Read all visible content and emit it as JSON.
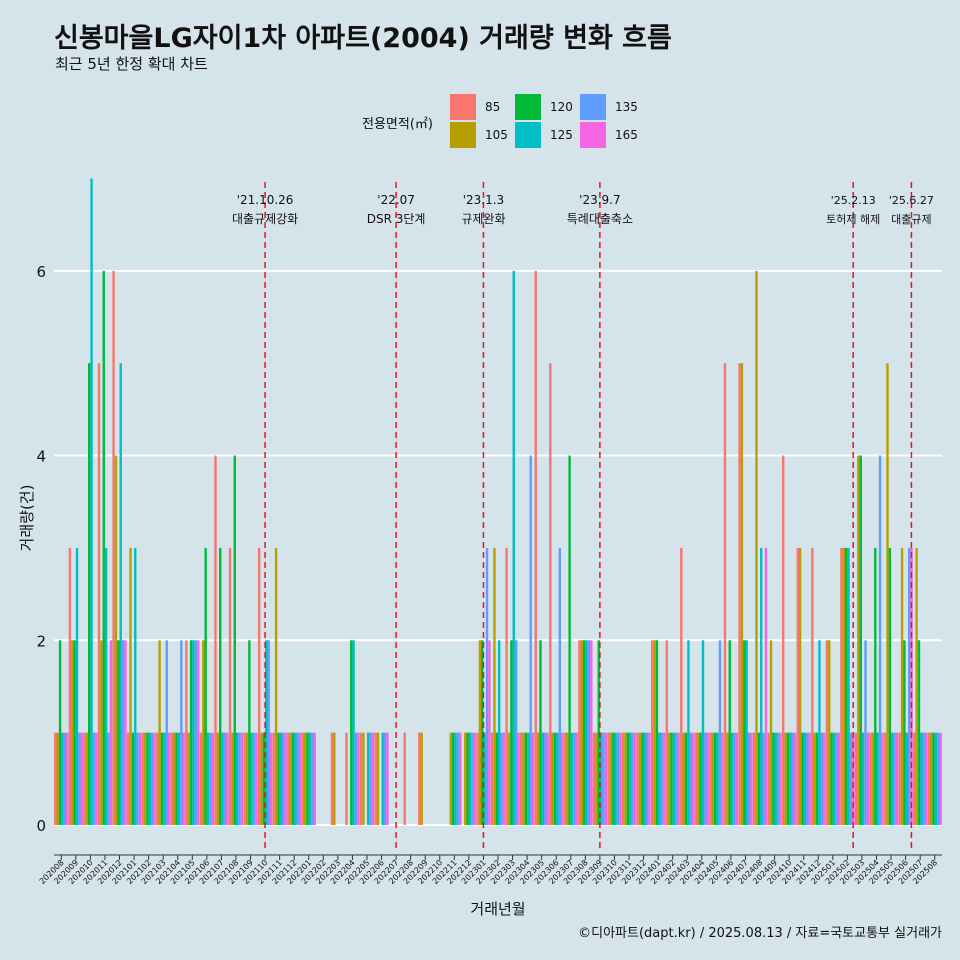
{
  "title": "신봉마을LG자이1차 아파트(2004) 거래량 변화 흐름",
  "subtitle": "최근 5년 한정 확대 차트",
  "caption": "©디아파트(dapt.kr) / 2025.08.13 / 자료=국토교통부 실거래가",
  "legend": {
    "title": "전용면적(㎡)",
    "items": [
      {
        "label": "85",
        "color": "#f8766d"
      },
      {
        "label": "105",
        "color": "#b79f00"
      },
      {
        "label": "120",
        "color": "#00ba38"
      },
      {
        "label": "125",
        "color": "#00bfc4"
      },
      {
        "label": "135",
        "color": "#619cff"
      },
      {
        "label": "165",
        "color": "#f564e3"
      }
    ]
  },
  "chart_data": {
    "type": "bar",
    "title": "신봉마을LG자이1차 아파트(2004) 거래량 변화 흐름",
    "xlabel": "거래년월",
    "ylabel": "거래량(건)",
    "ylim": [
      0,
      7.2
    ],
    "yticks": [
      0,
      2,
      4,
      6
    ],
    "grid": true,
    "legend_position": "top",
    "categories": [
      "202008",
      "202009",
      "202010",
      "202011",
      "202012",
      "202101",
      "202102",
      "202103",
      "202104",
      "202105",
      "202106",
      "202107",
      "202108",
      "202109",
      "202110",
      "202111",
      "202112",
      "202201",
      "202202",
      "202203",
      "202204",
      "202205",
      "202206",
      "202207",
      "202208",
      "202209",
      "202210",
      "202211",
      "202212",
      "202301",
      "202302",
      "202303",
      "202304",
      "202305",
      "202306",
      "202307",
      "202308",
      "202309",
      "202310",
      "202311",
      "202312",
      "202401",
      "202402",
      "202403",
      "202404",
      "202405",
      "202406",
      "202407",
      "202408",
      "202409",
      "202410",
      "202411",
      "202412",
      "202501",
      "202502",
      "202503",
      "202504",
      "202505",
      "202506",
      "202507",
      "202508"
    ],
    "series": [
      {
        "name": "85",
        "values": [
          1,
          3,
          1,
          5,
          6,
          1,
          1,
          1,
          1,
          2,
          1,
          4,
          3,
          1,
          3,
          1,
          1,
          1,
          0,
          1,
          1,
          1,
          1,
          0,
          1,
          1,
          0,
          0,
          0,
          1,
          1,
          3,
          1,
          6,
          5,
          1,
          2,
          1,
          1,
          1,
          1,
          2,
          2,
          3,
          1,
          1,
          5,
          5,
          1,
          1,
          4,
          3,
          3,
          2,
          3,
          1,
          1,
          1,
          1,
          1,
          1
        ]
      },
      {
        "name": "105",
        "values": [
          1,
          2,
          1,
          2,
          4,
          3,
          1,
          2,
          1,
          1,
          2,
          1,
          1,
          1,
          1,
          3,
          1,
          1,
          0,
          1,
          0,
          1,
          1,
          0,
          0,
          1,
          0,
          1,
          1,
          2,
          3,
          1,
          1,
          1,
          1,
          1,
          2,
          1,
          1,
          1,
          1,
          2,
          1,
          1,
          1,
          1,
          1,
          5,
          6,
          2,
          1,
          3,
          1,
          2,
          3,
          4,
          1,
          5,
          3,
          3,
          1
        ]
      },
      {
        "name": "120",
        "values": [
          2,
          2,
          5,
          6,
          2,
          1,
          1,
          1,
          1,
          2,
          3,
          3,
          4,
          2,
          1,
          1,
          1,
          1,
          0,
          0,
          2,
          0,
          0,
          0,
          0,
          0,
          0,
          1,
          1,
          2,
          1,
          2,
          1,
          2,
          1,
          4,
          2,
          2,
          1,
          1,
          1,
          2,
          1,
          1,
          1,
          1,
          2,
          2,
          1,
          1,
          1,
          1,
          1,
          1,
          3,
          4,
          3,
          3,
          2,
          2,
          1
        ]
      },
      {
        "name": "125",
        "values": [
          1,
          3,
          7,
          3,
          5,
          3,
          1,
          1,
          1,
          2,
          1,
          1,
          1,
          1,
          2,
          1,
          1,
          1,
          0,
          0,
          2,
          1,
          1,
          0,
          0,
          0,
          0,
          1,
          1,
          1,
          2,
          6,
          1,
          1,
          1,
          1,
          2,
          1,
          1,
          1,
          1,
          1,
          1,
          2,
          2,
          1,
          1,
          2,
          3,
          1,
          1,
          1,
          2,
          1,
          3,
          1,
          1,
          1,
          1,
          1,
          1
        ]
      },
      {
        "name": "135",
        "values": [
          1,
          1,
          1,
          1,
          2,
          1,
          1,
          2,
          2,
          2,
          1,
          1,
          1,
          1,
          2,
          1,
          1,
          1,
          0,
          0,
          1,
          1,
          1,
          0,
          0,
          0,
          0,
          1,
          1,
          3,
          1,
          2,
          4,
          1,
          3,
          1,
          2,
          1,
          1,
          1,
          1,
          1,
          1,
          1,
          1,
          2,
          1,
          1,
          1,
          1,
          1,
          1,
          1,
          1,
          1,
          2,
          4,
          1,
          3,
          1,
          1
        ]
      },
      {
        "name": "165",
        "values": [
          1,
          1,
          1,
          2,
          2,
          1,
          1,
          1,
          1,
          2,
          1,
          1,
          1,
          1,
          1,
          1,
          1,
          1,
          0,
          0,
          1,
          1,
          1,
          0,
          0,
          0,
          0,
          1,
          1,
          2,
          1,
          1,
          1,
          1,
          1,
          1,
          2,
          1,
          1,
          1,
          1,
          1,
          1,
          1,
          1,
          1,
          1,
          1,
          3,
          1,
          1,
          1,
          1,
          1,
          1,
          1,
          1,
          1,
          3,
          1,
          1
        ]
      }
    ],
    "events": [
      {
        "date": "'21.10.26",
        "label": "대출규제강화",
        "at": 14.0
      },
      {
        "date": "'22.07",
        "label": "DSR 3단계",
        "at": 23.0
      },
      {
        "date": "'23.1.3",
        "label": "규제완화",
        "at": 29.0
      },
      {
        "date": "'23.9.7",
        "label": "특례대출축소",
        "at": 37.0
      },
      {
        "date": "'25.2.13",
        "label": "토허제 해제",
        "at": 54.4
      },
      {
        "date": "'25.6.27",
        "label": "대출규제",
        "at": 58.4
      }
    ]
  }
}
